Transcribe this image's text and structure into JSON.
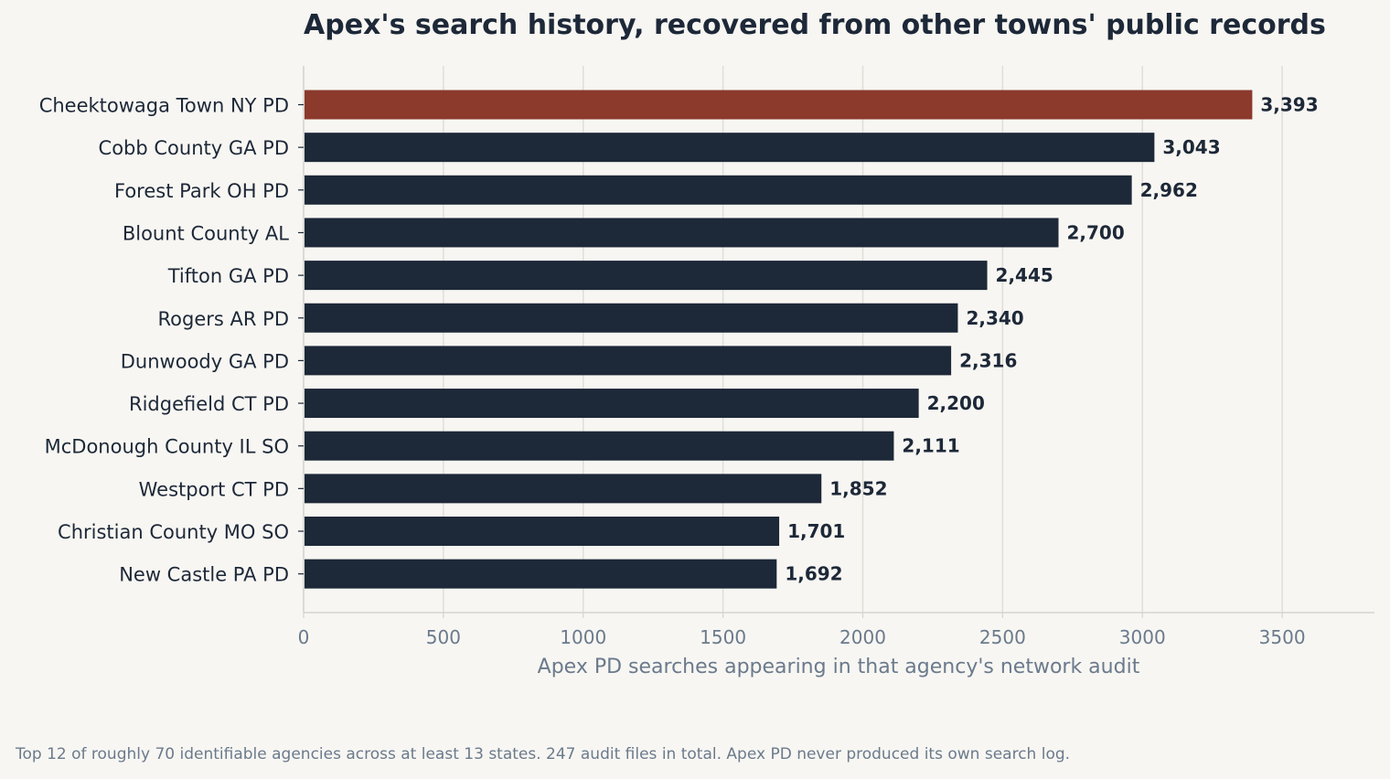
{
  "chart_data": {
    "type": "bar",
    "orientation": "horizontal",
    "title": "Apex's search history, recovered from other towns' public records",
    "xlabel": "Apex PD searches appearing in that agency's network audit",
    "ylabel": "",
    "categories": [
      "Cheektowaga Town NY PD",
      "Cobb County GA PD",
      "Forest Park OH PD",
      "Blount County AL",
      "Tifton GA PD",
      "Rogers AR PD",
      "Dunwoody GA PD",
      "Ridgefield CT PD",
      "McDonough County IL SO",
      "Westport CT PD",
      "Christian County MO SO",
      "New Castle PA PD"
    ],
    "values": [
      3393,
      3043,
      2962,
      2700,
      2445,
      2340,
      2316,
      2200,
      2111,
      1852,
      1701,
      1692
    ],
    "value_labels": [
      "3,393",
      "3,043",
      "2,962",
      "2,700",
      "2,445",
      "2,340",
      "2,316",
      "2,200",
      "2,111",
      "1,852",
      "1,701",
      "1,692"
    ],
    "xlim": [
      0,
      3830
    ],
    "xticks": [
      0,
      500,
      1000,
      1500,
      2000,
      2500,
      3000,
      3500
    ],
    "grid": "vertical",
    "colors": {
      "highlight": "#8b3a2c",
      "bar": "#1d2838",
      "grid": "#e0ded8",
      "axis": "#d6d4ce",
      "label": "#1d2838",
      "muted": "#6b7a8c"
    },
    "highlight_index": 0
  },
  "footnote": "Top 12 of roughly 70 identifiable agencies across at least 13 states. 247 audit files in total. Apex PD never produced its own search log."
}
